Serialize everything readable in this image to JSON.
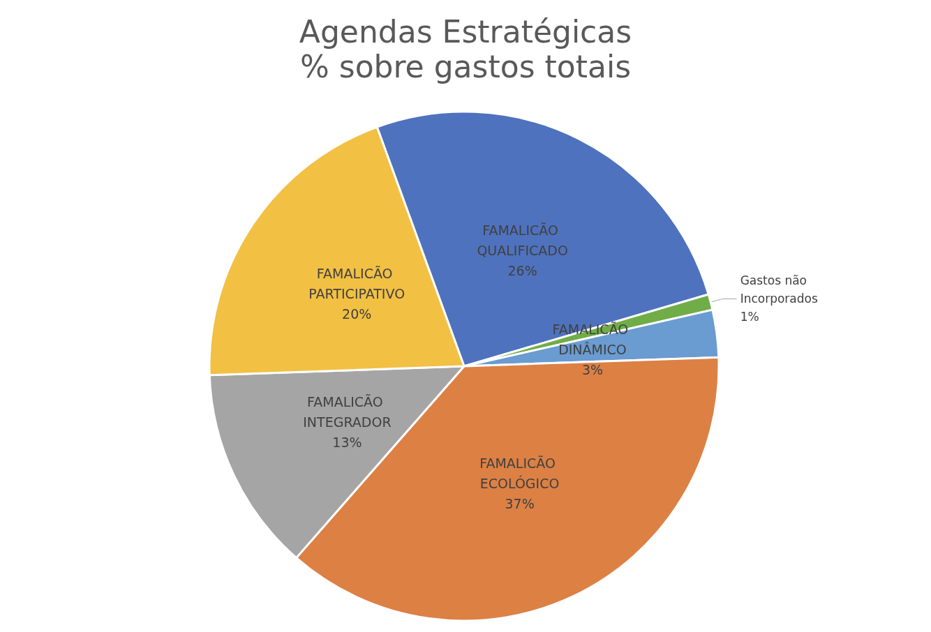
{
  "chart_data": {
    "type": "pie",
    "title": "Agendas Estratégicas",
    "subtitle": "% sobre gastos totais",
    "categories": [
      "FAMALICÃO QUALIFICADO",
      "Gastos não Incorporados",
      "FAMALICÃO DINÂMICO",
      "FAMALICÃO ECOLÓGICO",
      "FAMALICÃO INTEGRADOR",
      "FAMALICÃO PARTICIPATIVO"
    ],
    "values": [
      26,
      1,
      3,
      37,
      13,
      20
    ],
    "value_labels": [
      "26%",
      "1%",
      "3%",
      "37%",
      "13%",
      "20%"
    ],
    "colors": [
      "#4e72be",
      "#70ad47",
      "#6a9bd1",
      "#dd8044",
      "#a5a5a5",
      "#f2c042"
    ],
    "legend": false
  }
}
